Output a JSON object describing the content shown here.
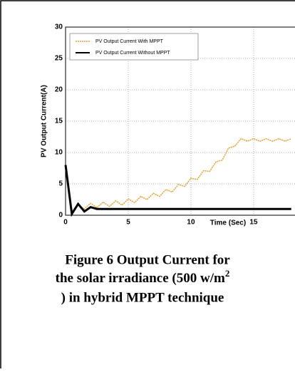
{
  "chart_data": {
    "type": "line",
    "xlabel": "Time (Sec)",
    "ylabel": "PV Output Current(A)",
    "x": [
      0,
      0.5,
      1,
      1.5,
      2,
      2.5,
      3,
      3.5,
      4,
      4.5,
      5,
      5.5,
      6,
      6.5,
      7,
      7.5,
      8,
      8.5,
      9,
      9.5,
      10,
      10.5,
      11,
      11.5,
      12,
      12.5,
      13,
      13.5,
      14,
      14.5,
      15,
      15.5,
      16,
      16.5,
      17,
      17.5,
      18
    ],
    "series": [
      {
        "name": "PV Output Current With MPPT",
        "color": "#e0a030",
        "values": [
          8,
          0.5,
          1.7,
          1.0,
          1.9,
          1.2,
          2.1,
          1.4,
          2.3,
          1.6,
          2.6,
          2.0,
          3.0,
          2.5,
          3.5,
          3.0,
          4.1,
          3.7,
          4.9,
          4.6,
          5.9,
          5.7,
          7.1,
          7.0,
          8.5,
          8.8,
          10.7,
          11.0,
          12.2,
          11.8,
          12.2,
          11.8,
          12.2,
          11.8,
          12.2,
          11.8,
          12.2
        ]
      },
      {
        "name": "PV Output Current Without MPPT",
        "color": "#000000",
        "values": [
          8,
          0.2,
          1.8,
          0.6,
          1.3,
          1.0,
          1,
          1,
          1,
          1,
          1,
          1,
          1,
          1,
          1,
          1,
          1,
          1,
          1,
          1,
          1,
          1,
          1,
          1,
          1,
          1,
          1,
          1,
          1,
          1,
          1,
          1,
          1,
          1,
          1,
          1,
          1
        ]
      }
    ],
    "xlim": [
      0,
      18.3
    ],
    "xticks": [
      0,
      5,
      10,
      15
    ],
    "ylim": [
      0,
      30
    ],
    "yticks": [
      0,
      5,
      10,
      15,
      20,
      25,
      30
    ],
    "grid": true,
    "legend": "upper left"
  },
  "caption": [
    "Figure 6 Output Current for",
    "the solar irradiance (500 w/m",
    "2",
    ") in hybrid MPPT technique"
  ]
}
